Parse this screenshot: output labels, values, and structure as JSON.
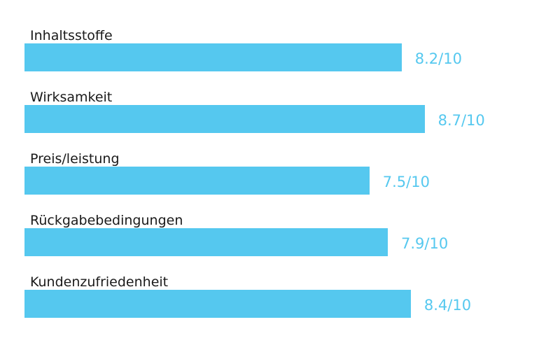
{
  "chart_data": {
    "type": "bar",
    "orientation": "horizontal",
    "categories": [
      "Inhaltsstoffe",
      "Wirksamkeit",
      "Preis/leistung",
      "Rückgabebedingungen",
      "Kundenzufriedenheit"
    ],
    "values": [
      8.2,
      8.7,
      7.5,
      7.9,
      8.4
    ],
    "value_labels": [
      "8.2/10",
      "8.7/10",
      "7.5/10",
      "7.9/10",
      "8.4/10"
    ],
    "max": 10,
    "title": "",
    "xlabel": "",
    "ylabel": "",
    "grid": false,
    "legend": "none",
    "colors": {
      "bar": "#55c8ef",
      "value_text": "#55c8ef",
      "label_text": "#1a1a1a"
    }
  }
}
